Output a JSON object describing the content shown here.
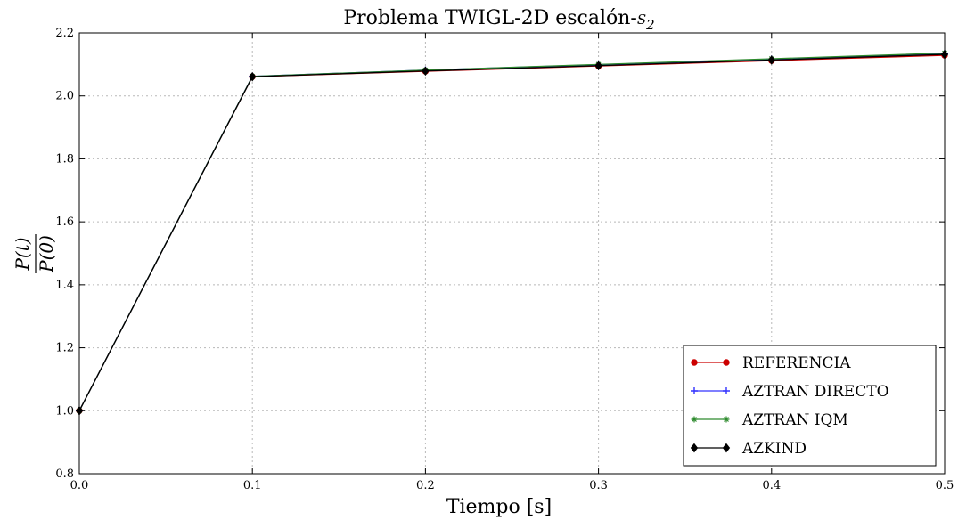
{
  "chart_data": {
    "type": "line",
    "title": "Problema TWIGL-2D escalón-",
    "title_math": "S",
    "title_math_sub": "2",
    "xlabel": "Tiempo [s]",
    "ylabel_numerator": "P(t)",
    "ylabel_denominator": "P(0)",
    "xlim": [
      0.0,
      0.5
    ],
    "ylim": [
      0.8,
      2.2
    ],
    "xticks": [
      "0.0",
      "0.1",
      "0.2",
      "0.3",
      "0.4",
      "0.5"
    ],
    "yticks": [
      "0.8",
      "1.0",
      "1.2",
      "1.4",
      "1.6",
      "1.8",
      "2.0",
      "2.2"
    ],
    "grid": true,
    "legend_position": "lower-right",
    "x": [
      0.0,
      0.1,
      0.2,
      0.3,
      0.4,
      0.5
    ],
    "series": [
      {
        "name": "REFERENCIA",
        "values": [
          1.0,
          2.061,
          2.078,
          2.095,
          2.112,
          2.129
        ],
        "color": "#cc0000",
        "marker": "circle"
      },
      {
        "name": "AZTRAN DIRECTO",
        "values": [
          1.0,
          2.062,
          2.082,
          2.099,
          2.117,
          2.134
        ],
        "color": "#3333ff",
        "marker": "plus"
      },
      {
        "name": "AZTRAN IQM",
        "values": [
          1.0,
          2.062,
          2.082,
          2.1,
          2.118,
          2.136
        ],
        "color": "#2e8b2e",
        "marker": "star"
      },
      {
        "name": "AZKIND",
        "values": [
          1.0,
          2.061,
          2.079,
          2.096,
          2.114,
          2.132
        ],
        "color": "#000000",
        "marker": "diamond"
      }
    ]
  }
}
